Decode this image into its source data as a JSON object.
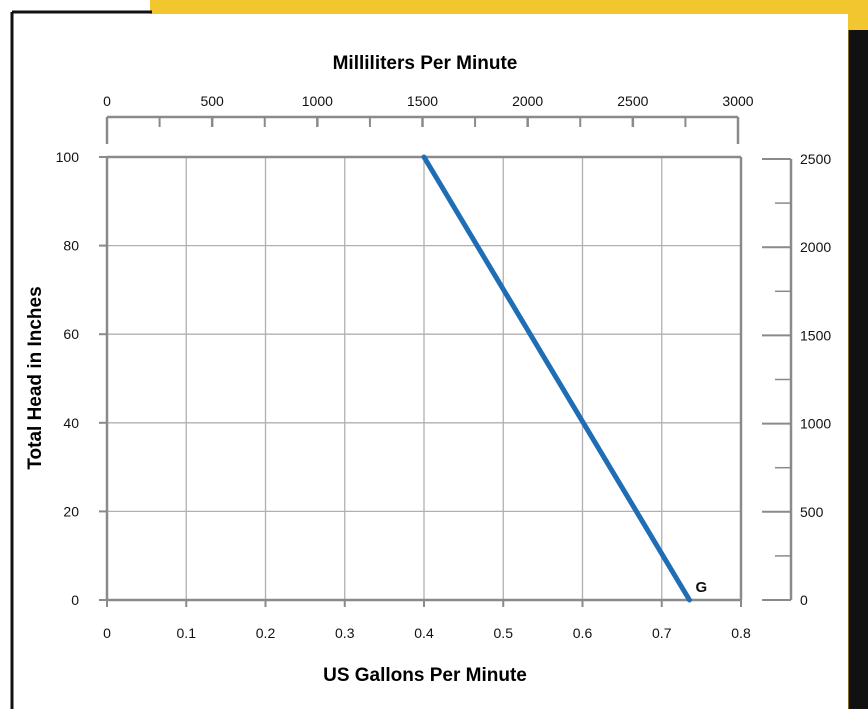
{
  "chart_data": {
    "type": "line",
    "title": "Milliliters Per Minute",
    "xlabel": "US Gallons Per Minute",
    "ylabel": "Total Head in Inches",
    "x_ticks": [
      "0",
      "0.1",
      "0.2",
      "0.3",
      "0.4",
      "0.5",
      "0.6",
      "0.7",
      "0.8"
    ],
    "y_ticks": [
      "0",
      "20",
      "40",
      "60",
      "80",
      "100"
    ],
    "top_ticks": [
      "0",
      "500",
      "1000",
      "1500",
      "2000",
      "2500",
      "3000"
    ],
    "right_ticks": [
      "0",
      "500",
      "1000",
      "1500",
      "2000",
      "2500"
    ],
    "xlim": [
      0,
      0.8
    ],
    "ylim": [
      0,
      100
    ],
    "top_lim": [
      0,
      3000
    ],
    "right_lim": [
      0,
      2500
    ],
    "grid": true,
    "series": [
      {
        "name": "G",
        "color": "#1f6eb5",
        "x": [
          0.4,
          0.735
        ],
        "y": [
          100,
          0
        ]
      }
    ]
  },
  "colors": {
    "accent_band": "#f2c62f",
    "axis": "#8a8a8a",
    "grid": "#b0b0b0",
    "line": "#1f6eb5"
  }
}
